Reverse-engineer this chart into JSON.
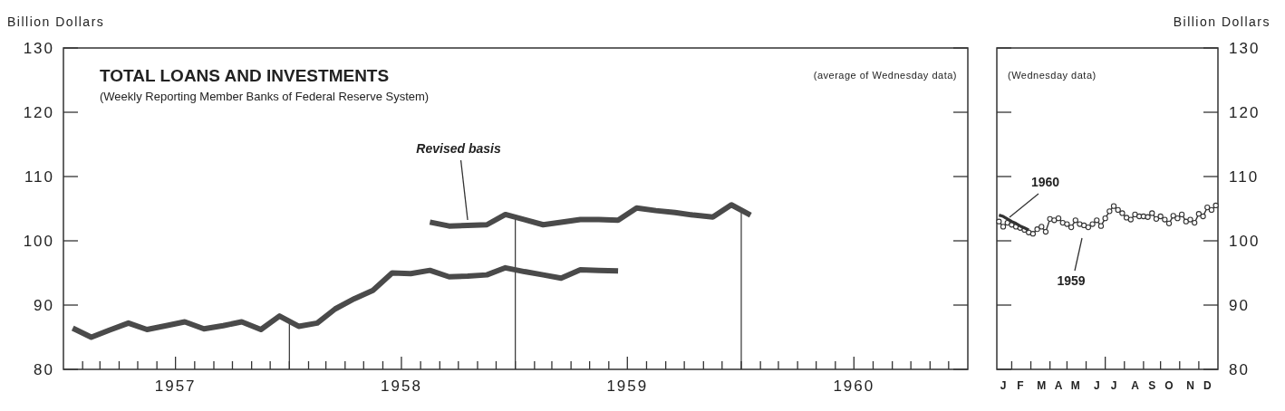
{
  "chart_data": [
    {
      "type": "line",
      "title": "TOTAL LOANS AND INVESTMENTS",
      "subtitle": "(Weekly Reporting Member Banks of Federal Reserve System)",
      "ylabel": "Billion Dollars",
      "series": [
        {
          "color": "#4a4a4a",
          "x": [
            "1957-01-16",
            "1957-02-15",
            "1957-03-16",
            "1957-04-16",
            "1957-05-16",
            "1957-06-16",
            "1957-07-16",
            "1957-08-16",
            "1957-09-16",
            "1957-10-16",
            "1957-11-16",
            "1957-12-16",
            "1958-01-16",
            "1958-02-15",
            "1958-03-16",
            "1958-04-16",
            "1958-05-16",
            "1958-06-16",
            "1958-07-16",
            "1958-08-16",
            "1958-09-16",
            "1958-10-16",
            "1958-11-16",
            "1958-12-16",
            "1959-01-16",
            "1959-02-15",
            "1959-03-16",
            "1959-04-16",
            "1959-05-16",
            "1959-06-16"
          ],
          "values": [
            86.4,
            85.0,
            86.1,
            87.2,
            86.2,
            86.8,
            87.4,
            86.3,
            86.8,
            87.4,
            86.2,
            88.3,
            86.7,
            87.2,
            89.4,
            91.0,
            92.3,
            95.0,
            94.9,
            95.4,
            94.4,
            94.5,
            94.7,
            95.8,
            95.2,
            94.7,
            94.2,
            95.5,
            95.4,
            95.3
          ]
        },
        {
          "color": "#4a4a4a",
          "x": [
            "1958-08-16",
            "1958-09-16",
            "1958-10-16",
            "1958-11-16",
            "1958-12-16",
            "1959-01-16",
            "1959-02-15",
            "1959-03-16",
            "1959-04-16",
            "1959-05-16",
            "1959-06-16",
            "1959-07-16",
            "1959-08-16",
            "1959-09-16",
            "1959-10-16",
            "1959-11-16",
            "1959-12-16",
            "1960-01-16"
          ],
          "values": [
            102.9,
            102.3,
            102.4,
            102.5,
            104.1,
            103.3,
            102.5,
            102.9,
            103.3,
            103.3,
            103.2,
            105.1,
            104.7,
            104.4,
            104.0,
            103.7,
            105.6,
            104.0
          ]
        }
      ],
      "xlim": [
        "1957-01-01",
        "1961-01-01"
      ],
      "xticks": [
        {
          "value": "1957-02-01",
          "label": null
        },
        {
          "value": "1957-03-01",
          "label": null
        },
        {
          "value": "1957-04-01",
          "label": null
        },
        {
          "value": "1957-05-01",
          "label": null
        },
        {
          "value": "1957-06-01",
          "label": null
        },
        {
          "value": "1957-07-01",
          "label": "1957"
        },
        {
          "value": "1957-08-01",
          "label": null
        },
        {
          "value": "1957-09-01",
          "label": null
        },
        {
          "value": "1957-10-01",
          "label": null
        },
        {
          "value": "1957-11-01",
          "label": null
        },
        {
          "value": "1957-12-01",
          "label": null
        },
        {
          "value": "1958-01-01",
          "label": null
        },
        {
          "value": "1958-02-01",
          "label": null
        },
        {
          "value": "1958-03-01",
          "label": null
        },
        {
          "value": "1958-04-01",
          "label": null
        },
        {
          "value": "1958-05-01",
          "label": null
        },
        {
          "value": "1958-06-01",
          "label": null
        },
        {
          "value": "1958-07-01",
          "label": "1958"
        },
        {
          "value": "1958-08-01",
          "label": null
        },
        {
          "value": "1958-09-01",
          "label": null
        },
        {
          "value": "1958-10-01",
          "label": null
        },
        {
          "value": "1958-11-01",
          "label": null
        },
        {
          "value": "1958-12-01",
          "label": null
        },
        {
          "value": "1959-01-01",
          "label": null
        },
        {
          "value": "1959-02-01",
          "label": null
        },
        {
          "value": "1959-03-01",
          "label": null
        },
        {
          "value": "1959-04-01",
          "label": null
        },
        {
          "value": "1959-05-01",
          "label": null
        },
        {
          "value": "1959-06-01",
          "label": null
        },
        {
          "value": "1959-07-01",
          "label": "1959"
        },
        {
          "value": "1959-08-01",
          "label": null
        },
        {
          "value": "1959-09-01",
          "label": null
        },
        {
          "value": "1959-10-01",
          "label": null
        },
        {
          "value": "1959-11-01",
          "label": null
        },
        {
          "value": "1959-12-01",
          "label": null
        },
        {
          "value": "1960-01-01",
          "label": null
        },
        {
          "value": "1960-02-01",
          "label": null
        },
        {
          "value": "1960-03-01",
          "label": null
        },
        {
          "value": "1960-04-01",
          "label": null
        },
        {
          "value": "1960-05-01",
          "label": null
        },
        {
          "value": "1960-06-01",
          "label": null
        },
        {
          "value": "1960-07-01",
          "label": "1960"
        },
        {
          "value": "1960-08-01",
          "label": null
        },
        {
          "value": "1960-09-01",
          "label": null
        },
        {
          "value": "1960-10-01",
          "label": null
        },
        {
          "value": "1960-11-01",
          "label": null
        },
        {
          "value": "1960-12-01",
          "label": null
        }
      ],
      "ylim": [
        80,
        130
      ],
      "yticks": [
        80,
        90,
        100,
        110,
        120,
        130
      ],
      "ref_lines": [
        {
          "axis": "x",
          "value": "1958-01-01",
          "label": null
        },
        {
          "axis": "x",
          "value": "1959-01-01",
          "label": null
        },
        {
          "axis": "x",
          "value": "1960-01-01",
          "label": null
        }
      ],
      "annotations": [
        "(average of Wednesday data)",
        {
          "text": "Revised basis",
          "x": "1958-10-16",
          "y": 102.4
        }
      ],
      "line_style": "solid",
      "marker": "none",
      "grid": false
    },
    {
      "type": "line",
      "ylabel": "Billion Dollars",
      "series": [
        {
          "color": "#333333",
          "values": [
            103.0,
            102.2,
            102.8,
            102.5,
            102.2,
            102.0,
            101.7,
            101.3,
            101.1,
            101.8,
            102.2,
            101.4,
            103.4,
            103.2,
            103.5,
            102.8,
            102.6,
            102.1,
            103.2,
            102.6,
            102.4,
            102.1,
            102.6,
            103.2,
            102.3,
            103.5,
            104.6,
            105.4,
            104.8,
            104.3,
            103.6,
            103.3,
            104.1,
            103.8,
            103.8,
            103.7,
            104.3,
            103.4,
            103.8,
            103.3,
            102.7,
            103.9,
            103.5,
            104.1,
            103.0,
            103.3,
            102.8,
            104.2,
            103.8,
            105.2,
            104.8,
            105.5
          ]
        },
        {
          "color": "#333333",
          "marker": "none",
          "values": [
            104.0,
            103.8,
            103.4,
            103.0,
            102.7,
            102.3,
            102.0,
            101.7,
            null,
            null,
            null,
            null,
            null,
            null,
            null,
            null,
            null,
            null,
            null,
            null,
            null,
            null,
            null,
            null,
            null,
            null,
            null,
            null,
            null,
            null,
            null,
            null,
            null,
            null,
            null,
            null,
            null,
            null,
            null,
            null,
            null,
            null,
            null,
            null,
            null,
            null,
            null,
            null,
            null,
            null,
            null,
            null
          ]
        }
      ],
      "categories": [
        null,
        "J",
        null,
        null,
        null,
        "F",
        null,
        null,
        null,
        null,
        "M",
        null,
        null,
        null,
        "A",
        null,
        null,
        null,
        "M",
        null,
        null,
        null,
        null,
        "J",
        null,
        null,
        null,
        "J",
        null,
        null,
        null,
        null,
        "A",
        null,
        null,
        null,
        "S",
        null,
        null,
        null,
        "O",
        null,
        null,
        null,
        null,
        "N",
        null,
        null,
        null,
        "D",
        null,
        null
      ],
      "ylim": [
        80,
        130
      ],
      "yticks": [
        80,
        90,
        100,
        110,
        120,
        130
      ],
      "annotations": [
        "(Wednesday data)",
        "1960",
        "1959"
      ],
      "line_style": "solid",
      "marker": "circle",
      "grid": false
    }
  ]
}
